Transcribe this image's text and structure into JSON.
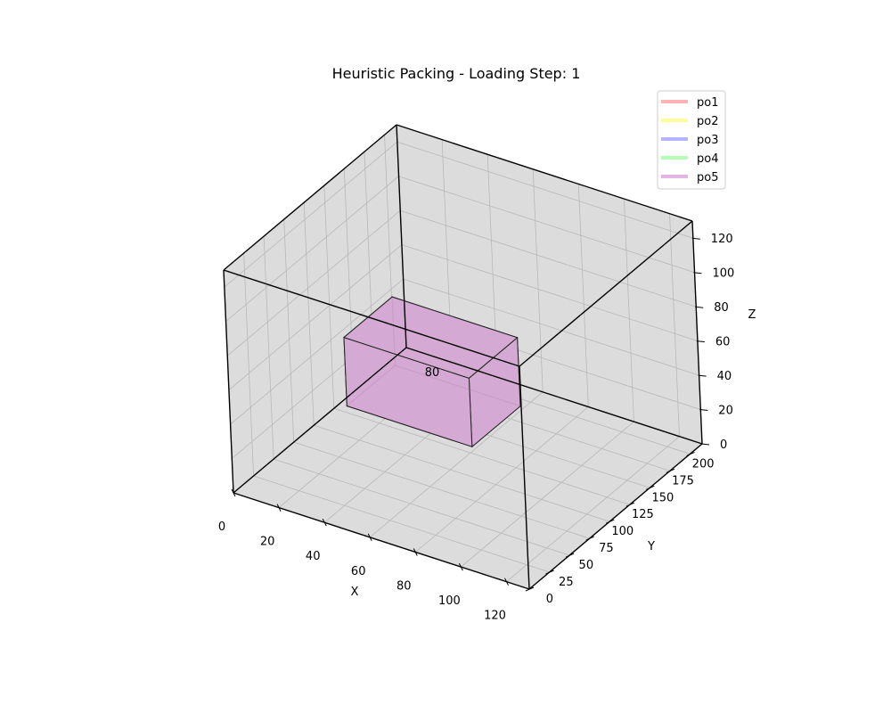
{
  "chart_data": {
    "type": "3d-box",
    "title": "Heuristic Packing - Loading Step: 1",
    "xlabel": "X",
    "ylabel": "Y",
    "zlabel": "Z",
    "xlim": [
      0,
      130
    ],
    "ylim": [
      0,
      215
    ],
    "zlim": [
      0,
      130
    ],
    "xticks": [
      0,
      20,
      40,
      60,
      80,
      100,
      120
    ],
    "yticks": [
      0,
      25,
      50,
      75,
      100,
      125,
      150,
      175,
      200
    ],
    "zticks": [
      0,
      20,
      40,
      60,
      80,
      100,
      120
    ],
    "grid": true,
    "legend_placement": "top-right",
    "legend": [
      {
        "name": "po1",
        "color": "#ffb3b3"
      },
      {
        "name": "po2",
        "color": "#ffff99"
      },
      {
        "name": "po3",
        "color": "#b3b3ff"
      },
      {
        "name": "po4",
        "color": "#b3ffb3"
      },
      {
        "name": "po5",
        "color": "#e6b3e6"
      }
    ],
    "boxes": [
      {
        "order": "po5",
        "label": "80",
        "x": [
          30,
          85
        ],
        "y": [
          60,
          120
        ],
        "z": [
          40,
          80
        ],
        "color": "#d4a8d4"
      }
    ]
  }
}
